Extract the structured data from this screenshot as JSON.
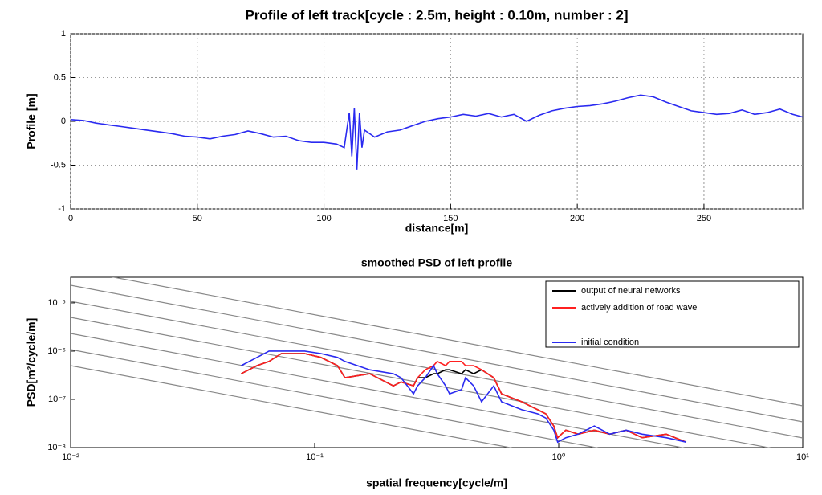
{
  "chart_data": [
    {
      "type": "line",
      "title": "Profile of left track[cycle : 2.5m, height : 0.10m, number : 2]",
      "x_label": "distance[m]",
      "y_label": "Profile [m]",
      "xlim": [
        0,
        289
      ],
      "ylim": [
        -1,
        1
      ],
      "xticks": [
        0,
        50,
        100,
        150,
        200,
        250
      ],
      "yticks": [
        -1,
        -0.5,
        0,
        0.5,
        1
      ],
      "grid": true,
      "x": [
        0,
        5,
        10,
        15,
        20,
        25,
        30,
        35,
        40,
        45,
        50,
        55,
        60,
        65,
        70,
        75,
        80,
        85,
        90,
        95,
        100,
        105,
        108,
        110,
        111,
        112,
        113,
        114,
        115,
        116,
        120,
        125,
        130,
        135,
        140,
        145,
        150,
        155,
        160,
        165,
        170,
        175,
        180,
        185,
        190,
        195,
        200,
        205,
        210,
        215,
        220,
        225,
        230,
        235,
        240,
        245,
        250,
        255,
        260,
        265,
        270,
        275,
        280,
        285,
        289
      ],
      "series": [
        {
          "color": "#2a2af0",
          "values": [
            0.02,
            0.01,
            -0.02,
            -0.04,
            -0.06,
            -0.08,
            -0.1,
            -0.12,
            -0.14,
            -0.17,
            -0.18,
            -0.2,
            -0.17,
            -0.15,
            -0.11,
            -0.14,
            -0.18,
            -0.17,
            -0.22,
            -0.24,
            -0.24,
            -0.26,
            -0.3,
            0.1,
            -0.4,
            0.15,
            -0.55,
            0.1,
            -0.3,
            -0.1,
            -0.18,
            -0.12,
            -0.1,
            -0.05,
            0,
            0.03,
            0.05,
            0.08,
            0.06,
            0.09,
            0.05,
            0.08,
            0,
            0.07,
            0.12,
            0.15,
            0.17,
            0.18,
            0.2,
            0.23,
            0.27,
            0.3,
            0.28,
            0.22,
            0.17,
            0.12,
            0.1,
            0.08,
            0.09,
            0.13,
            0.08,
            0.1,
            0.14,
            0.08,
            0.05
          ]
        }
      ]
    },
    {
      "type": "line",
      "title": "smoothed PSD of left profile",
      "x_label": "spatial frequency[cycle/m]",
      "y_label": "PSD[m²/cycle/m]",
      "xscale": "log",
      "yscale": "log",
      "xlim": [
        0.01,
        10
      ],
      "ylim": [
        1e-08,
        3.4e-05
      ],
      "xticks": [
        {
          "value": 0.01,
          "label": "10⁻²"
        },
        {
          "value": 0.1,
          "label": "10⁻¹"
        },
        {
          "value": 1,
          "label": "10⁰"
        },
        {
          "value": 10,
          "label": "10¹"
        }
      ],
      "yticks": [
        {
          "value": 1e-08,
          "label": "10⁻⁸"
        },
        {
          "value": 1e-07,
          "label": "10⁻⁷"
        },
        {
          "value": 1e-06,
          "label": "10⁻⁶"
        },
        {
          "value": 1e-05,
          "label": "10⁻⁵"
        }
      ],
      "grid": false,
      "legend": "upper right",
      "x": [
        0.05,
        0.058,
        0.065,
        0.073,
        0.091,
        0.106,
        0.124,
        0.133,
        0.168,
        0.21,
        0.226,
        0.254,
        0.264,
        0.284,
        0.307,
        0.318,
        0.344,
        0.357,
        0.4,
        0.415,
        0.448,
        0.483,
        0.542,
        0.583,
        0.706,
        0.82,
        0.885,
        0.955,
        0.99,
        1.07,
        1.2,
        1.4,
        1.62,
        1.89,
        2.2,
        2.76,
        3.33
      ],
      "series": [
        {
          "name": "output of neural networks",
          "color": "#000000",
          "values": [
            3.4e-07,
            5e-07,
            6.1e-07,
            8.9e-07,
            8.9e-07,
            7.4e-07,
            5e-07,
            2.8e-07,
            3.4e-07,
            1.9e-07,
            2.3e-07,
            1.9e-07,
            2.8e-07,
            2.8e-07,
            3.4e-07,
            3.4e-07,
            4.1e-07,
            4.1e-07,
            3.4e-07,
            4.1e-07,
            3.4e-07,
            4.1e-07,
            2.8e-07,
            1.3e-07,
            8.9e-08,
            6.1e-08,
            5e-08,
            2.8e-08,
            1.6e-08,
            2.3e-08,
            1.9e-08,
            2.3e-08,
            1.9e-08,
            2.3e-08,
            1.6e-08,
            1.9e-08,
            1.3e-08
          ]
        },
        {
          "name": "actively addition of road wave",
          "color": "#ff2020",
          "values": [
            3.4e-07,
            5e-07,
            6.1e-07,
            8.9e-07,
            8.9e-07,
            7.4e-07,
            5e-07,
            2.8e-07,
            3.4e-07,
            1.9e-07,
            2.3e-07,
            1.9e-07,
            2.8e-07,
            4.1e-07,
            5e-07,
            6.1e-07,
            5e-07,
            6.1e-07,
            6.1e-07,
            5e-07,
            5e-07,
            4.1e-07,
            2.8e-07,
            1.3e-07,
            8.9e-08,
            6.1e-08,
            5e-08,
            2.8e-08,
            1.6e-08,
            2.3e-08,
            1.9e-08,
            2.3e-08,
            1.9e-08,
            2.3e-08,
            1.6e-08,
            1.9e-08,
            1.3e-08
          ]
        },
        {
          "name": "initial condition",
          "color": "#2a2af0",
          "values": [
            5e-07,
            7.4e-07,
            1e-06,
            1e-06,
            1e-06,
            8.9e-07,
            7.4e-07,
            6.1e-07,
            4.1e-07,
            3.4e-07,
            2.8e-07,
            1.3e-07,
            1.9e-07,
            2.8e-07,
            5e-07,
            3.4e-07,
            1.9e-07,
            1.3e-07,
            1.6e-07,
            2.8e-07,
            1.9e-07,
            8.9e-08,
            1.9e-07,
            8.9e-08,
            6.1e-08,
            5e-08,
            4.1e-08,
            2.3e-08,
            1.3e-08,
            1.6e-08,
            1.9e-08,
            2.8e-08,
            1.9e-08,
            2.3e-08,
            1.9e-08,
            1.6e-08,
            1.3e-08
          ]
        }
      ]
    }
  ]
}
